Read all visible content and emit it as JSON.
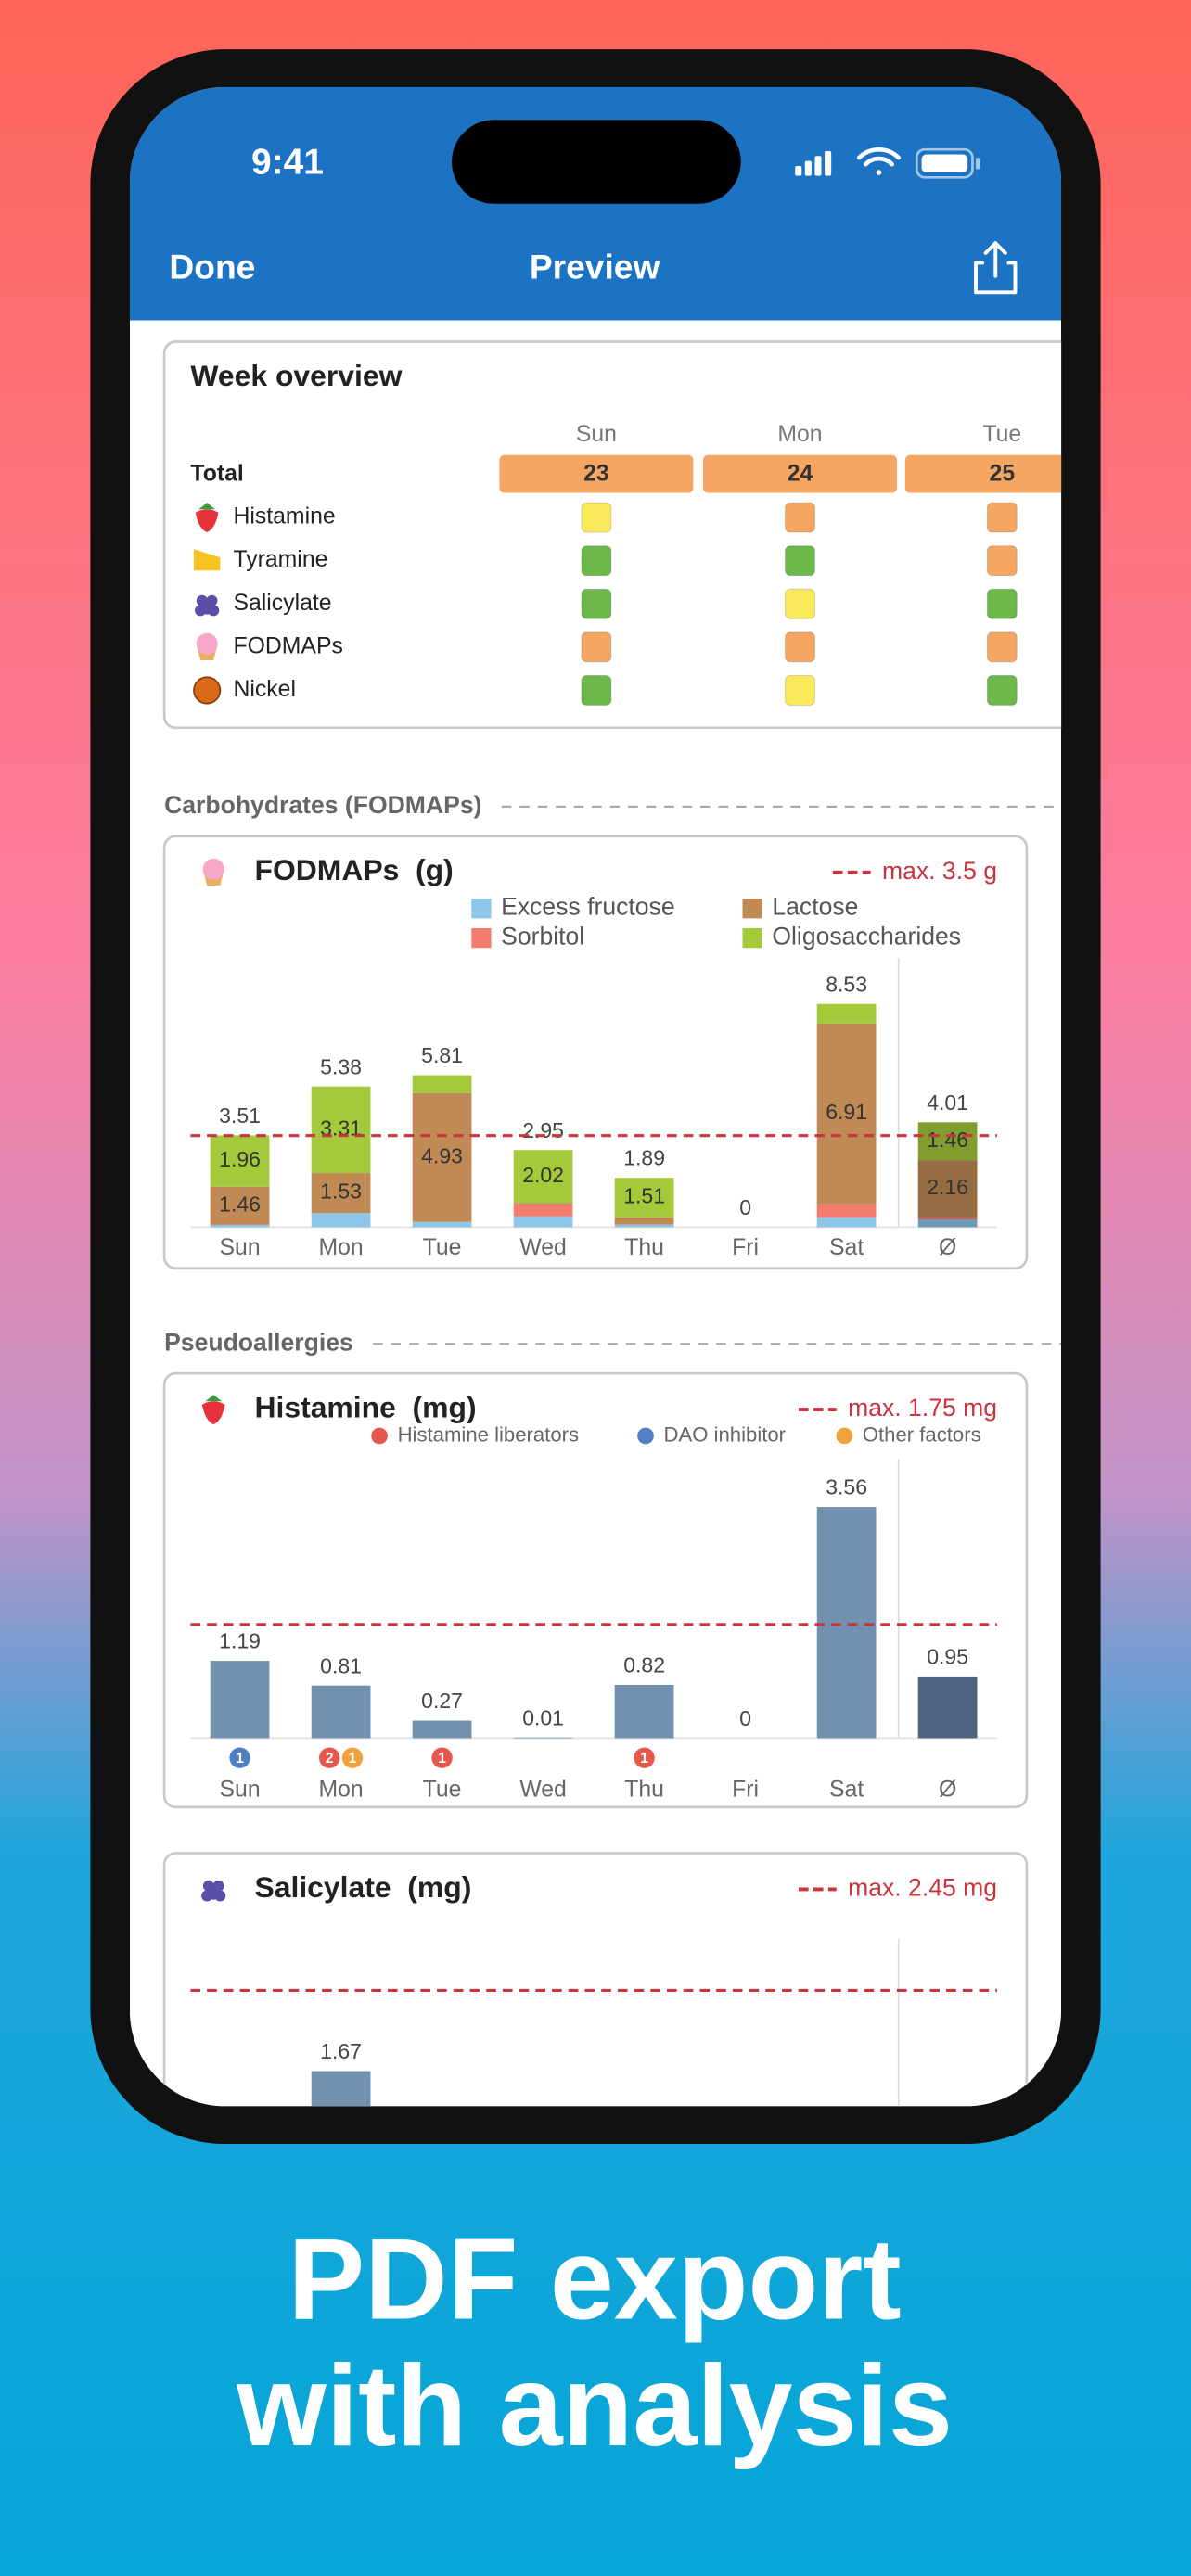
{
  "status_bar": {
    "time": "9:41"
  },
  "nav": {
    "left": "Done",
    "title": "Preview"
  },
  "week_overview": {
    "title": "Week overview",
    "days": [
      "Sun",
      "Mon",
      "Tue"
    ],
    "total_label": "Total",
    "totals": [
      23,
      24,
      25
    ],
    "total_color": "#f5a662",
    "rows": [
      {
        "label": "Histamine",
        "colors": [
          "#fbe95c",
          "#f5a662",
          "#f5a662"
        ]
      },
      {
        "label": "Tyramine",
        "colors": [
          "#6db84b",
          "#6db84b",
          "#f5a662"
        ]
      },
      {
        "label": "Salicylate",
        "colors": [
          "#6db84b",
          "#fbe95c",
          "#6db84b"
        ]
      },
      {
        "label": "FODMAPs",
        "colors": [
          "#f5a662",
          "#f5a662",
          "#f5a662"
        ]
      },
      {
        "label": "Nickel",
        "colors": [
          "#6db84b",
          "#fbe95c",
          "#6db84b"
        ]
      }
    ]
  },
  "sections": [
    "Carbohydrates (FODMAPs)",
    "Pseudoallergies"
  ],
  "chart_data": [
    {
      "type": "stacked_bar",
      "title": "FODMAPs",
      "unit": "(g)",
      "limit": {
        "value": 3.5,
        "label": "max. 3.5 g"
      },
      "ylim": [
        0,
        10.3
      ],
      "categories": [
        "Sun",
        "Mon",
        "Tue",
        "Wed",
        "Thu",
        "Fri",
        "Sat",
        "Ø"
      ],
      "totals": [
        3.51,
        5.38,
        5.81,
        2.95,
        1.89,
        0,
        8.53,
        4.01
      ],
      "series": [
        {
          "name": "Excess fructose",
          "color": "#8ec6ea",
          "values": [
            0.09,
            0.54,
            0.2,
            0.42,
            0.1,
            0,
            0.38,
            0.3
          ]
        },
        {
          "name": "Sorbitol",
          "color": "#f47c6e",
          "values": [
            0,
            0,
            0,
            0.45,
            0,
            0,
            0.5,
            0.09
          ]
        },
        {
          "name": "Lactose",
          "color": "#c08a55",
          "values": [
            1.46,
            1.53,
            4.93,
            0.06,
            0.28,
            0,
            6.91,
            2.16
          ]
        },
        {
          "name": "Oligosaccharides",
          "color": "#a4c93b",
          "values": [
            1.96,
            3.31,
            0.68,
            2.02,
            1.51,
            0,
            0.74,
            1.46
          ]
        }
      ]
    },
    {
      "type": "bar",
      "title": "Histamine",
      "unit": "(mg)",
      "limit": {
        "value": 1.75,
        "label": "max. 1.75 mg"
      },
      "ylim": [
        0,
        4.3
      ],
      "categories": [
        "Sun",
        "Mon",
        "Tue",
        "Wed",
        "Thu",
        "Fri",
        "Sat",
        "Ø"
      ],
      "values": [
        1.19,
        0.81,
        0.27,
        0.01,
        0.82,
        0,
        3.56,
        0.95
      ],
      "color": "#7291ae",
      "average_color": "#4c6480",
      "badges": [
        {
          "name": "Histamine liberators",
          "color": "#e8574c",
          "counts": [
            null,
            2,
            1,
            null,
            1,
            null,
            null,
            null
          ]
        },
        {
          "name": "DAO inhibitor",
          "color": "#4f80c4",
          "counts": [
            1,
            null,
            null,
            null,
            null,
            null,
            null,
            null
          ]
        },
        {
          "name": "Other factors",
          "color": "#f0a23c",
          "counts": [
            null,
            1,
            null,
            null,
            null,
            null,
            null,
            null
          ]
        }
      ]
    },
    {
      "type": "bar",
      "title": "Salicylate",
      "unit": "(mg)",
      "limit": {
        "value": 2.45,
        "label": "max. 2.45 mg"
      },
      "ylim": [
        0,
        2.95
      ],
      "values": [
        null,
        1.67
      ],
      "color": "#7291ae"
    }
  ],
  "headline": [
    "PDF export",
    "with analysis"
  ]
}
